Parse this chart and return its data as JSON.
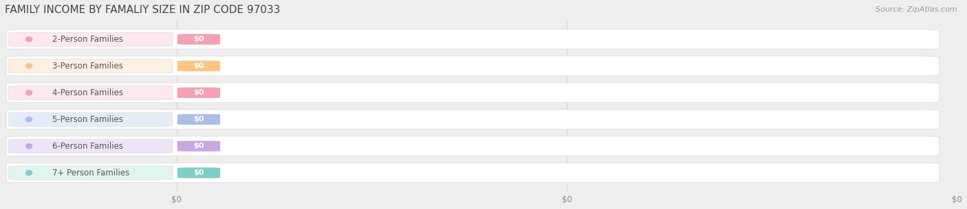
{
  "title": "FAMILY INCOME BY FAMALIY SIZE IN ZIP CODE 97033",
  "source": "Source: ZipAtlas.com",
  "categories": [
    "2-Person Families",
    "3-Person Families",
    "4-Person Families",
    "5-Person Families",
    "6-Person Families",
    "7+ Person Families"
  ],
  "values": [
    0,
    0,
    0,
    0,
    0,
    0
  ],
  "bar_colors": [
    "#f4a0b5",
    "#f9c580",
    "#f4a0b5",
    "#a8bfe8",
    "#c9a8e0",
    "#7dcfc8"
  ],
  "label_bg_colors": [
    "#fce8ee",
    "#fef0e0",
    "#fce8ee",
    "#e4ecf8",
    "#ede4f8",
    "#e0f5f0"
  ],
  "dot_colors": [
    "#f4a0b5",
    "#f9c580",
    "#f4a0b5",
    "#a8bfe8",
    "#c9a8e0",
    "#7dcfc8"
  ],
  "bar_label": "$0",
  "background_color": "#eeeeee",
  "plot_bg_color": "#eeeeee",
  "title_fontsize": 11,
  "source_fontsize": 8,
  "label_fontsize": 8.5,
  "tick_fontsize": 8.5,
  "xtick_labels": [
    "$0",
    "$0",
    "$0"
  ],
  "xtick_positions": [
    0.0,
    0.5,
    1.0
  ]
}
